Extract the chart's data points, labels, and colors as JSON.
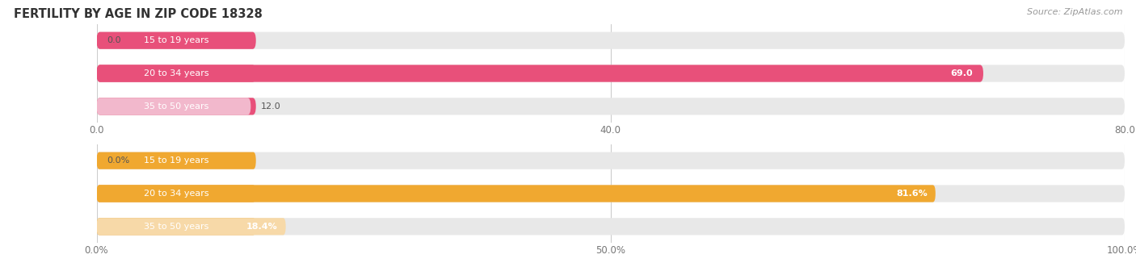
{
  "title": "FERTILITY BY AGE IN ZIP CODE 18328",
  "source": "Source: ZipAtlas.com",
  "top_chart": {
    "categories": [
      "15 to 19 years",
      "20 to 34 years",
      "35 to 50 years"
    ],
    "values": [
      0.0,
      69.0,
      12.0
    ],
    "xlim": [
      0,
      80.0
    ],
    "xticks": [
      0.0,
      40.0,
      80.0
    ],
    "xticklabels": [
      "0.0",
      "40.0",
      "80.0"
    ],
    "bar_colors": [
      "#f5a0bc",
      "#e8507a",
      "#f2b8cc"
    ],
    "cap_colors": [
      "#e8507a",
      "#e8507a",
      "#e8507a"
    ],
    "bar_height": 0.52,
    "bar_bg_color": "#e8e8e8",
    "value_threshold_inside": 0.15
  },
  "bottom_chart": {
    "categories": [
      "15 to 19 years",
      "20 to 34 years",
      "35 to 50 years"
    ],
    "values": [
      0.0,
      81.6,
      18.4
    ],
    "xlim": [
      0,
      100.0
    ],
    "xticks": [
      0.0,
      50.0,
      100.0
    ],
    "xticklabels": [
      "0.0%",
      "50.0%",
      "100.0%"
    ],
    "bar_colors": [
      "#f5c98a",
      "#f0a830",
      "#f7d9a8"
    ],
    "cap_colors": [
      "#f0a830",
      "#f0a830",
      "#f0a830"
    ],
    "bar_height": 0.52,
    "bar_bg_color": "#e8e8e8",
    "value_threshold_inside": 0.15
  },
  "fig_bg_color": "#ffffff",
  "title_fontsize": 10.5,
  "tick_fontsize": 8.5,
  "label_fontsize": 8,
  "cat_fontsize": 8,
  "source_fontsize": 8
}
